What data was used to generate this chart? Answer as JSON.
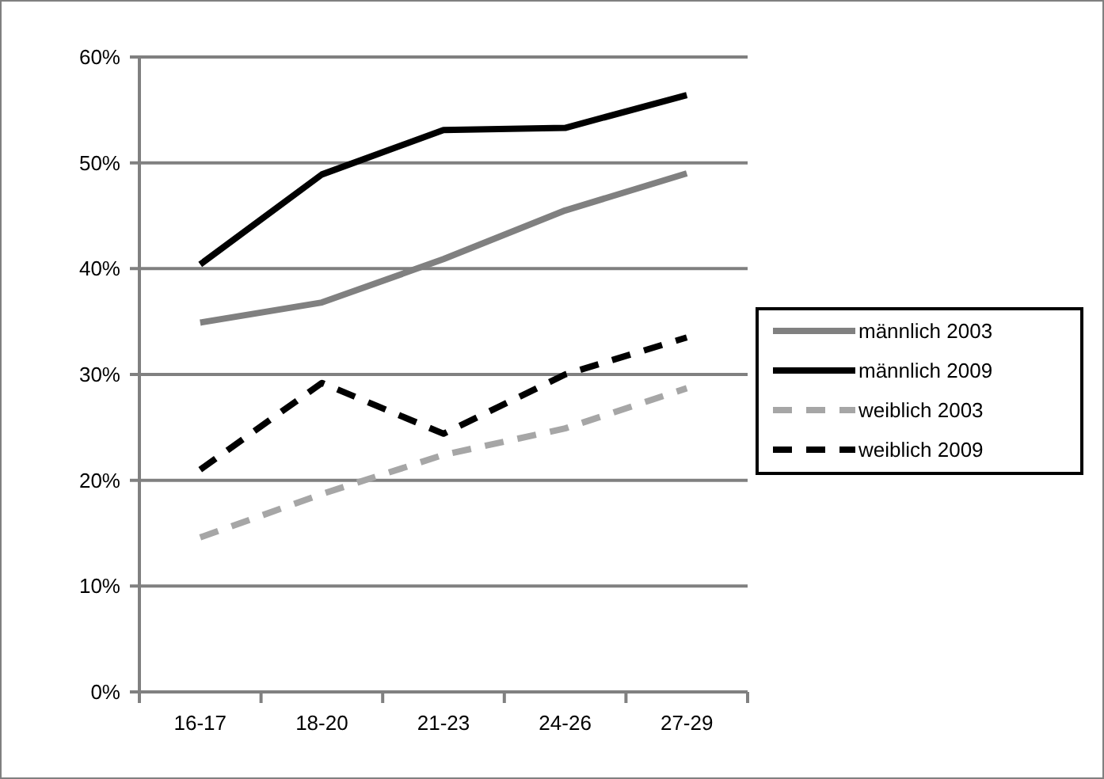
{
  "chart_data": {
    "type": "line",
    "categories": [
      "16-17",
      "18-20",
      "21-23",
      "24-26",
      "27-29"
    ],
    "series": [
      {
        "name": "männlich 2003",
        "color": "#808080",
        "line_style": "solid",
        "values": [
          34.9,
          36.8,
          40.9,
          45.5,
          49.0
        ]
      },
      {
        "name": "männlich 2009",
        "color": "#000000",
        "line_style": "solid",
        "values": [
          40.4,
          48.9,
          53.1,
          53.3,
          56.4
        ]
      },
      {
        "name": "weiblich 2003",
        "color": "#a6a6a6",
        "line_style": "dashed",
        "values": [
          14.6,
          18.7,
          22.4,
          24.9,
          28.7
        ]
      },
      {
        "name": "weiblich 2009",
        "color": "#000000",
        "line_style": "dashed",
        "values": [
          21.0,
          29.2,
          24.4,
          30.0,
          33.5
        ]
      }
    ],
    "ylim": [
      0,
      60
    ],
    "yticks": [
      {
        "value": 0,
        "label": "0%"
      },
      {
        "value": 10,
        "label": "10%"
      },
      {
        "value": 20,
        "label": "20%"
      },
      {
        "value": 30,
        "label": "30%"
      },
      {
        "value": 40,
        "label": "40%"
      },
      {
        "value": 50,
        "label": "50%"
      },
      {
        "value": 60,
        "label": "60%"
      }
    ],
    "grid": "y",
    "legend": "right",
    "marker": "none"
  }
}
